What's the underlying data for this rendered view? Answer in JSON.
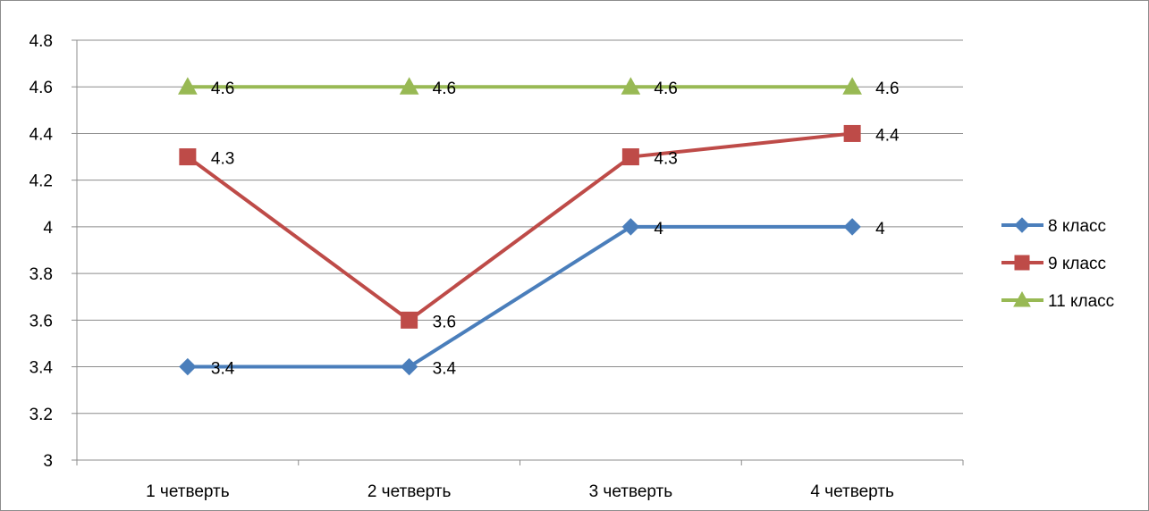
{
  "chart_data": {
    "type": "line",
    "title": "",
    "xlabel": "",
    "ylabel": "",
    "categories": [
      "1 четверть",
      "2 четверть",
      "3 четверть",
      "4 четверть"
    ],
    "ylim": [
      3,
      4.8
    ],
    "ytick_step": 0.2,
    "y_ticks": [
      "3",
      "3.2",
      "3.4",
      "3.6",
      "3.8",
      "4",
      "4.2",
      "4.4",
      "4.6",
      "4.8"
    ],
    "grid": true,
    "legend": "right",
    "series": [
      {
        "name": "8 класс",
        "values": [
          3.4,
          3.4,
          4,
          4
        ],
        "labels": [
          "3.4",
          "3.4",
          "4",
          "4"
        ],
        "color": "#4a7ebb",
        "marker": "diamond"
      },
      {
        "name": "9 класс",
        "values": [
          4.3,
          3.6,
          4.3,
          4.4
        ],
        "labels": [
          "4.3",
          "3.6",
          "4.3",
          "4.4"
        ],
        "color": "#be4b48",
        "marker": "square"
      },
      {
        "name": "11 класс",
        "values": [
          4.6,
          4.6,
          4.6,
          4.6
        ],
        "labels": [
          "4.6",
          "4.6",
          "4.6",
          "4.6"
        ],
        "color": "#98b954",
        "marker": "triangle"
      }
    ]
  }
}
